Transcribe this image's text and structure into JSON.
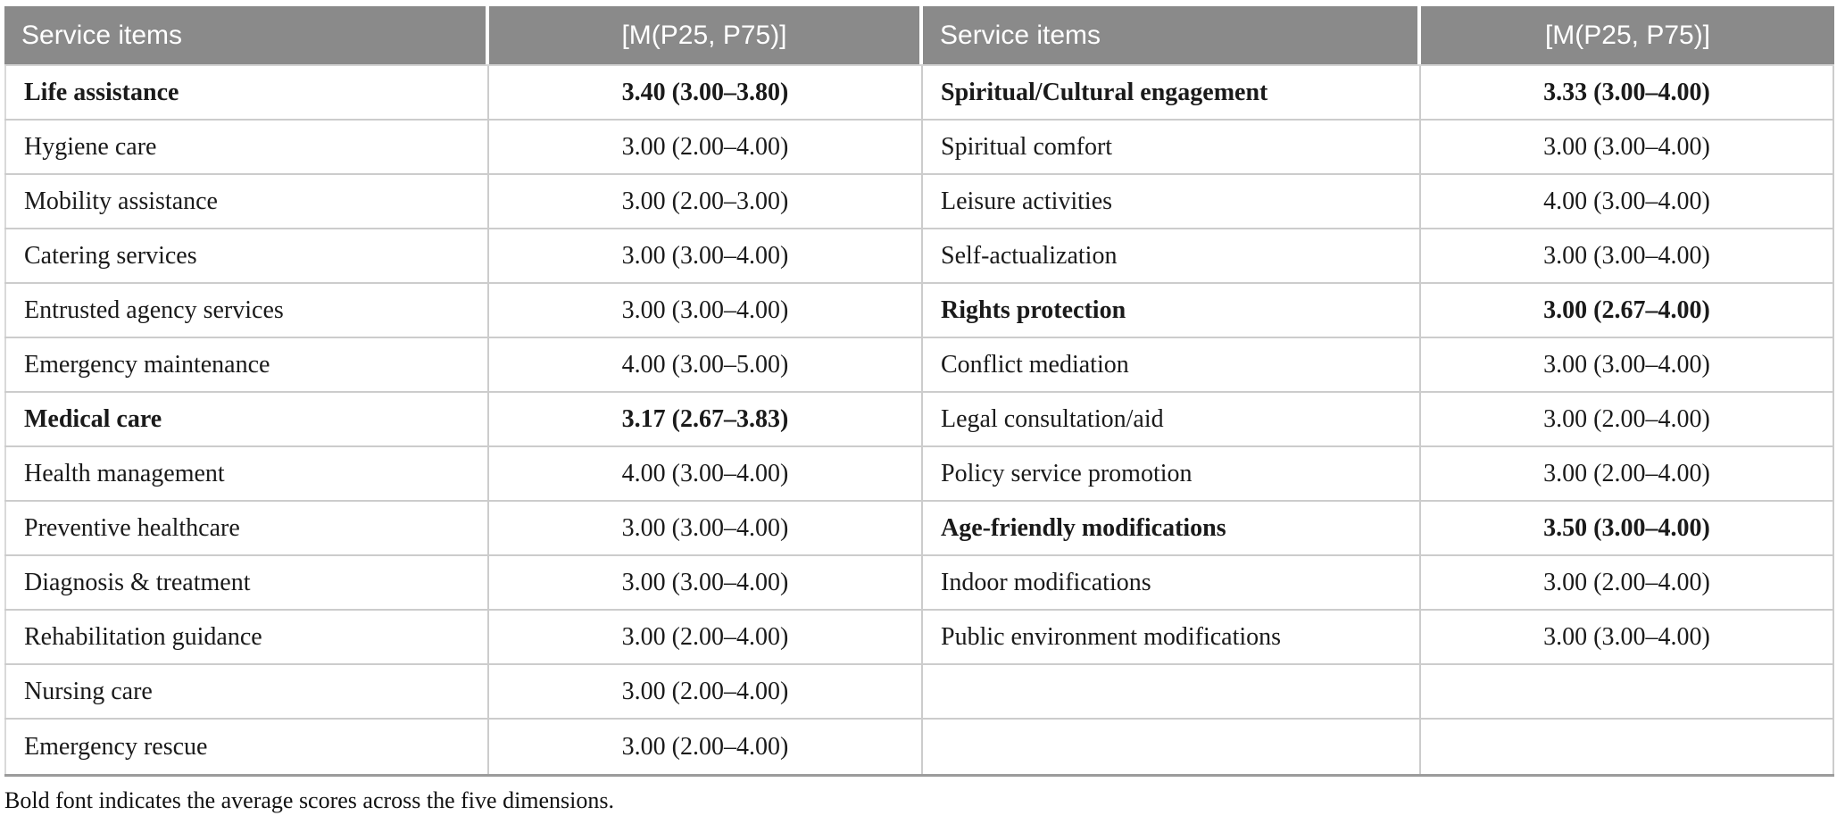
{
  "table": {
    "headers": [
      "Service items",
      "[M(P25, P75)]",
      "Service items",
      "[M(P25, P75)]"
    ],
    "footnote": "Bold font indicates the average scores across the five dimensions.",
    "rows": [
      {
        "left_item": "Life assistance",
        "left_value": "3.40 (3.00–3.80)",
        "left_bold": true,
        "right_item": "Spiritual/Cultural engagement",
        "right_value": "3.33 (3.00–4.00)",
        "right_bold": true
      },
      {
        "left_item": "Hygiene care",
        "left_value": "3.00 (2.00–4.00)",
        "left_bold": false,
        "right_item": "Spiritual comfort",
        "right_value": "3.00 (3.00–4.00)",
        "right_bold": false
      },
      {
        "left_item": "Mobility assistance",
        "left_value": "3.00 (2.00–3.00)",
        "left_bold": false,
        "right_item": "Leisure activities",
        "right_value": "4.00 (3.00–4.00)",
        "right_bold": false
      },
      {
        "left_item": "Catering services",
        "left_value": "3.00 (3.00–4.00)",
        "left_bold": false,
        "right_item": "Self-actualization",
        "right_value": "3.00 (3.00–4.00)",
        "right_bold": false
      },
      {
        "left_item": "Entrusted agency services",
        "left_value": "3.00 (3.00–4.00)",
        "left_bold": false,
        "right_item": "Rights protection",
        "right_value": "3.00 (2.67–4.00)",
        "right_bold": true
      },
      {
        "left_item": "Emergency maintenance",
        "left_value": "4.00 (3.00–5.00)",
        "left_bold": false,
        "right_item": "Conflict mediation",
        "right_value": "3.00 (3.00–4.00)",
        "right_bold": false
      },
      {
        "left_item": "Medical care",
        "left_value": "3.17 (2.67–3.83)",
        "left_bold": true,
        "right_item": "Legal consultation/aid",
        "right_value": "3.00 (2.00–4.00)",
        "right_bold": false
      },
      {
        "left_item": "Health management",
        "left_value": "4.00 (3.00–4.00)",
        "left_bold": false,
        "right_item": "Policy service promotion",
        "right_value": "3.00 (2.00–4.00)",
        "right_bold": false
      },
      {
        "left_item": "Preventive healthcare",
        "left_value": "3.00 (3.00–4.00)",
        "left_bold": false,
        "right_item": "Age-friendly modifications",
        "right_value": "3.50 (3.00–4.00)",
        "right_bold": true
      },
      {
        "left_item": "Diagnosis & treatment",
        "left_value": "3.00 (3.00–4.00)",
        "left_bold": false,
        "right_item": "Indoor modifications",
        "right_value": "3.00 (2.00–4.00)",
        "right_bold": false
      },
      {
        "left_item": "Rehabilitation guidance",
        "left_value": "3.00 (2.00–4.00)",
        "left_bold": false,
        "right_item": "Public environment modifications",
        "right_value": "3.00 (3.00–4.00)",
        "right_bold": false
      },
      {
        "left_item": "Nursing care",
        "left_value": "3.00 (2.00–4.00)",
        "left_bold": false,
        "right_item": "",
        "right_value": "",
        "right_bold": false
      },
      {
        "left_item": "Emergency rescue",
        "left_value": "3.00 (2.00–4.00)",
        "left_bold": false,
        "right_item": "",
        "right_value": "",
        "right_bold": false
      }
    ]
  },
  "colors": {
    "header_background": "#8a8a8a",
    "header_text": "#ffffff",
    "grid_line": "#cccccc",
    "bottom_rule": "#9b9b9b",
    "body_text": "#1a1a1a"
  }
}
